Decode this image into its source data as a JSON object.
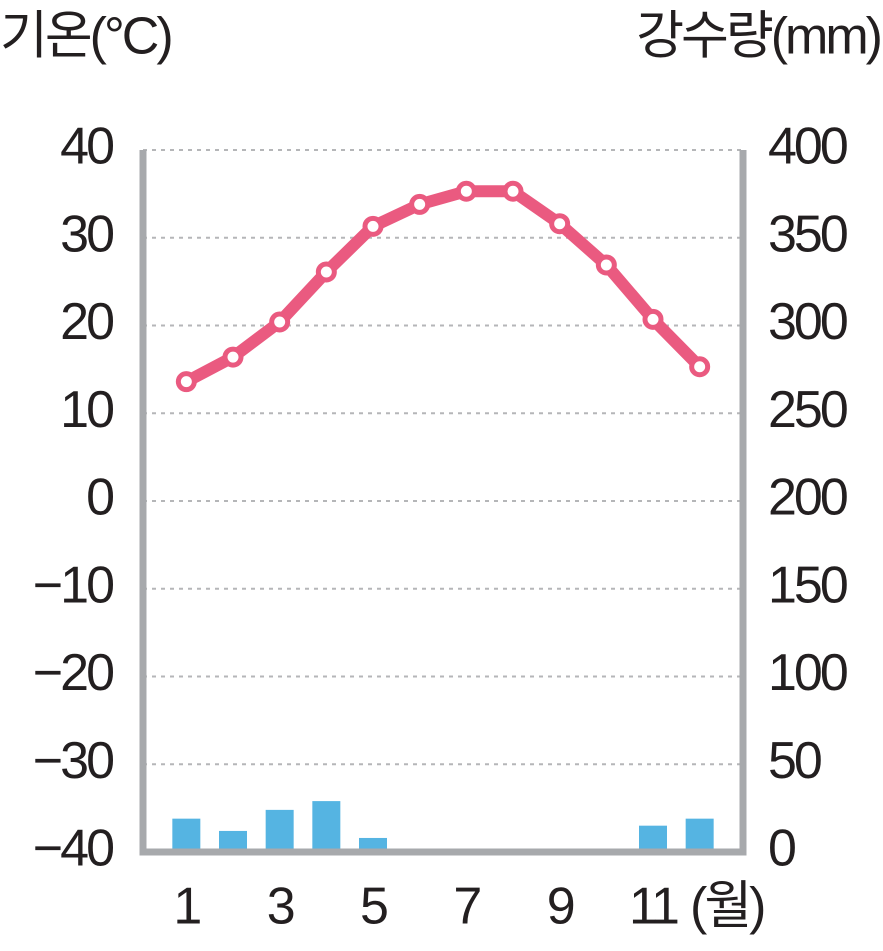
{
  "chart_data": {
    "type": "combo",
    "y_label": "기온(°C)",
    "y2_label": "강수량(mm)",
    "x_label": "(월)",
    "categories": [
      "1",
      null,
      "3",
      null,
      "5",
      null,
      "7",
      null,
      "9",
      null,
      "11",
      null
    ],
    "series": [
      {
        "name": "기온",
        "type": "line",
        "axis": "y",
        "color": "#ea5a80",
        "values": [
          13.6,
          16.4,
          20.4,
          26.1,
          31.3,
          33.8,
          35.3,
          35.3,
          31.6,
          26.9,
          20.7,
          15.3
        ]
      },
      {
        "name": "강수량",
        "type": "bar",
        "axis": "y2",
        "color": "#55b4e2",
        "values": [
          19,
          12,
          24,
          29,
          8,
          0,
          0,
          0,
          0,
          1,
          15,
          19
        ]
      }
    ],
    "ylim": [
      -40,
      40
    ],
    "yticks": [
      {
        "value": -40,
        "label": "−40"
      },
      {
        "value": -30,
        "label": "−30"
      },
      {
        "value": -20,
        "label": "−20"
      },
      {
        "value": -10,
        "label": "−10"
      },
      0,
      10,
      20,
      30,
      40
    ],
    "y2lim": [
      0,
      400
    ],
    "y2ticks": [
      0,
      50,
      100,
      150,
      200,
      250,
      300,
      350,
      400
    ],
    "grid": true
  }
}
